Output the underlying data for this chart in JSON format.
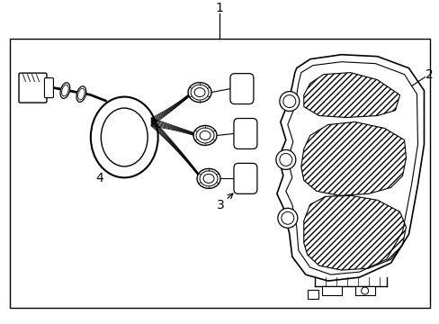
{
  "background_color": "#ffffff",
  "line_color": "#000000",
  "label_1": "1",
  "label_2": "2",
  "label_3": "3",
  "label_4": "4",
  "fig_width": 4.89,
  "fig_height": 3.6,
  "dpi": 100
}
